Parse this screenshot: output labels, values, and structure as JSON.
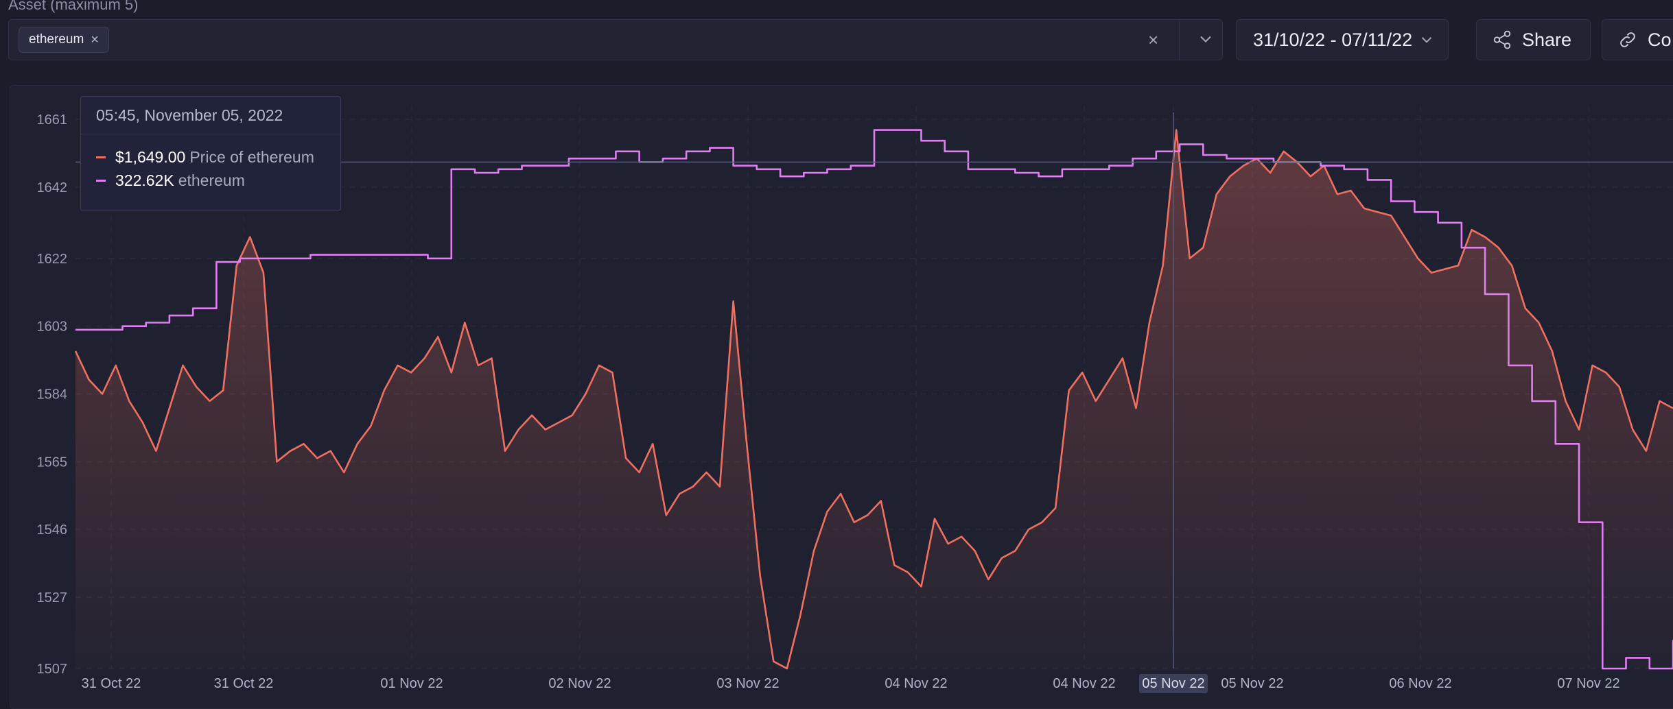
{
  "asset_selector": {
    "label": "Asset (maximum 5)",
    "chips": [
      {
        "label": "ethereum",
        "remove": "×"
      }
    ],
    "clear": "×"
  },
  "date_range": {
    "value": "31/10/22 - 07/11/22"
  },
  "share_button": {
    "label": "Share"
  },
  "copy_button": {
    "label": "Co"
  },
  "tooltip": {
    "timestamp": "05:45, November 05, 2022",
    "rows": [
      {
        "value": "$1,649.00",
        "label": "Price of ethereum",
        "color": "#f07060"
      },
      {
        "value": "322.62K",
        "label": "ethereum",
        "color": "#e07ef2"
      }
    ]
  },
  "colors": {
    "background": "#1b1d2b",
    "price_line": "#f07060",
    "volume_line": "#e07ef2"
  },
  "icons": {
    "chip_remove": "close-icon",
    "clear": "close-icon",
    "dropdown": "chevron-down-icon",
    "share": "share-icon",
    "copy": "link-icon"
  },
  "chart_data": {
    "type": "line",
    "y_ticks": [
      1661,
      1642,
      1622,
      1603,
      1584,
      1565,
      1546,
      1527,
      1507
    ],
    "ylim": [
      1507,
      1661
    ],
    "x_ticks": [
      "31 Oct 22",
      "31 Oct 22",
      "01 Nov 22",
      "02 Nov 22",
      "03 Nov 22",
      "04 Nov 22",
      "04 Nov 22",
      "05 Nov 22",
      "05 Nov 22",
      "06 Nov 22",
      "07 Nov 22"
    ],
    "highlighted_x_tick": "05 Nov 22",
    "grid": true,
    "crosshair_value": 1649,
    "series": [
      {
        "name": "Price of ethereum",
        "color": "#f07060",
        "fill": "area",
        "values": [
          1596,
          1588,
          1584,
          1592,
          1582,
          1576,
          1568,
          1580,
          1592,
          1586,
          1582,
          1585,
          1620,
          1628,
          1618,
          1565,
          1568,
          1570,
          1566,
          1568,
          1562,
          1570,
          1575,
          1585,
          1592,
          1590,
          1594,
          1600,
          1590,
          1604,
          1592,
          1594,
          1568,
          1574,
          1578,
          1574,
          1576,
          1578,
          1584,
          1592,
          1590,
          1566,
          1562,
          1570,
          1550,
          1556,
          1558,
          1562,
          1558,
          1610,
          1570,
          1533,
          1509,
          1507,
          1522,
          1540,
          1551,
          1556,
          1548,
          1550,
          1554,
          1536,
          1534,
          1530,
          1549,
          1542,
          1544,
          1540,
          1532,
          1538,
          1540,
          1546,
          1548,
          1552,
          1585,
          1590,
          1582,
          1588,
          1594,
          1580,
          1604,
          1620,
          1658,
          1622,
          1625,
          1640,
          1645,
          1648,
          1650,
          1646,
          1652,
          1649,
          1645,
          1648,
          1640,
          1641,
          1636,
          1635,
          1634,
          1628,
          1622,
          1618,
          1619,
          1620,
          1630,
          1628,
          1625,
          1620,
          1608,
          1604,
          1596,
          1582,
          1574,
          1592,
          1590,
          1586,
          1574,
          1568,
          1582,
          1580
        ]
      },
      {
        "name": "ethereum",
        "color": "#e07ef2",
        "fill": "none",
        "values": [
          1602,
          1602,
          1603,
          1604,
          1606,
          1608,
          1621,
          1622,
          1622,
          1622,
          1623,
          1623,
          1623,
          1623,
          1623,
          1622,
          1647,
          1646,
          1647,
          1648,
          1648,
          1650,
          1650,
          1652,
          1649,
          1650,
          1652,
          1653,
          1648,
          1647,
          1645,
          1646,
          1647,
          1648,
          1658,
          1658,
          1655,
          1652,
          1647,
          1647,
          1646,
          1645,
          1647,
          1647,
          1648,
          1650,
          1652,
          1654,
          1651,
          1650,
          1650,
          1649,
          1649,
          1648,
          1647,
          1644,
          1638,
          1635,
          1632,
          1625,
          1612,
          1592,
          1582,
          1570,
          1548,
          1507,
          1510,
          1507,
          1515
        ]
      }
    ]
  }
}
